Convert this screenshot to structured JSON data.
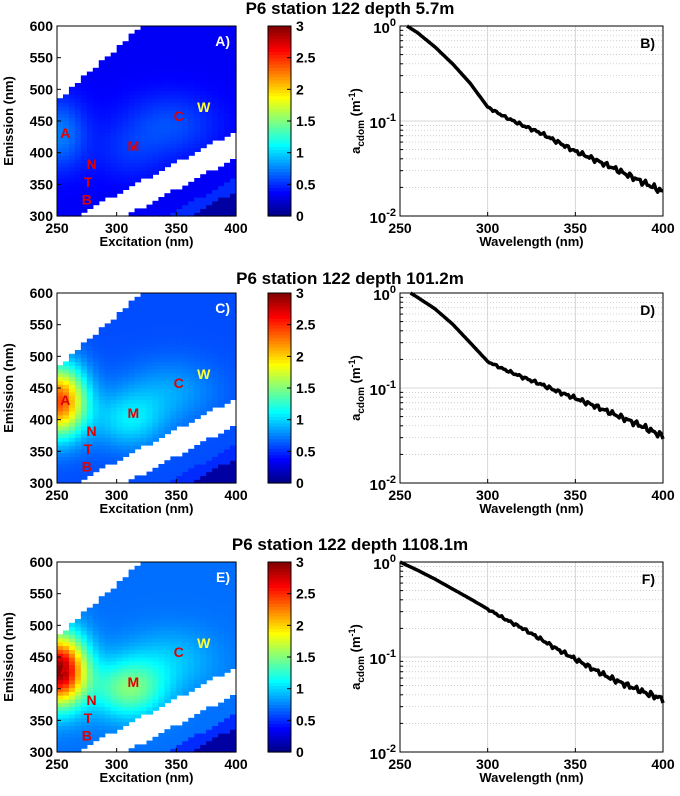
{
  "chart_data": [
    {
      "row": 0,
      "title": "P6 station 122 depth 5.7m",
      "eem": {
        "type": "heatmap",
        "panel": "A)",
        "xlabel": "Excitation (nm)",
        "ylabel": "Emission (nm)",
        "xlim": [
          250,
          400
        ],
        "ylim": [
          300,
          600
        ],
        "xticks": [
          "250",
          "300",
          "350",
          "400"
        ],
        "yticks": [
          "300",
          "350",
          "400",
          "450",
          "500",
          "550",
          "600"
        ],
        "peak_A": 0.75,
        "peak_M": 0.6,
        "background": 0.35,
        "peaks": [
          {
            "label": "A",
            "ex": 257,
            "em": 423,
            "color": "#e00000"
          },
          {
            "label": "N",
            "ex": 279,
            "em": 374,
            "color": "#e00000"
          },
          {
            "label": "T",
            "ex": 276,
            "em": 346,
            "color": "#e00000"
          },
          {
            "label": "B",
            "ex": 275,
            "em": 318,
            "color": "#e00000"
          },
          {
            "label": "M",
            "ex": 314,
            "em": 403,
            "color": "#e00000"
          },
          {
            "label": "C",
            "ex": 352,
            "em": 450,
            "color": "#e00000"
          },
          {
            "label": "W",
            "ex": 373,
            "em": 464,
            "color": "#ffff33"
          }
        ],
        "colorbar": {
          "min": 0,
          "max": 3,
          "ticks": [
            "0",
            "0.5",
            "1",
            "1.5",
            "2",
            "2.5",
            "3"
          ]
        }
      },
      "abs": {
        "type": "line",
        "panel": "B)",
        "xlabel": "Wavelength (nm)",
        "ylabel": "a",
        "ylabel_sub": "cdom",
        "ylabel_unit": " (m",
        "ylabel_exp": "-1",
        "ylabel_close": ")",
        "xlim": [
          250,
          400
        ],
        "ylim": [
          0.01,
          1
        ],
        "xticks": [
          "250",
          "300",
          "350",
          "400"
        ],
        "yticks": [
          {
            "base": "10",
            "exp": "0"
          },
          {
            "base": "10",
            "exp": "-1"
          },
          {
            "base": "10",
            "exp": "-2"
          }
        ],
        "x": [
          254,
          260,
          270,
          280,
          290,
          300,
          310,
          320,
          330,
          340,
          350,
          360,
          370,
          380,
          390,
          400
        ],
        "y": [
          1.0,
          0.85,
          0.6,
          0.4,
          0.25,
          0.14,
          0.11,
          0.09,
          0.075,
          0.06,
          0.048,
          0.04,
          0.033,
          0.027,
          0.022,
          0.018
        ]
      }
    },
    {
      "row": 1,
      "title": "P6 station 122 depth 101.2m",
      "eem": {
        "type": "heatmap",
        "panel": "C)",
        "xlabel": "Excitation (nm)",
        "ylabel": "Emission (nm)",
        "xlim": [
          250,
          400
        ],
        "ylim": [
          300,
          600
        ],
        "xticks": [
          "250",
          "300",
          "350",
          "400"
        ],
        "yticks": [
          "300",
          "350",
          "400",
          "450",
          "500",
          "550",
          "600"
        ],
        "peak_A": 2.4,
        "peak_M": 1.4,
        "background": 0.6,
        "peaks": [
          {
            "label": "A",
            "ex": 257,
            "em": 423,
            "color": "#e00000"
          },
          {
            "label": "N",
            "ex": 279,
            "em": 374,
            "color": "#e00000"
          },
          {
            "label": "T",
            "ex": 276,
            "em": 346,
            "color": "#e00000"
          },
          {
            "label": "B",
            "ex": 275,
            "em": 318,
            "color": "#e00000"
          },
          {
            "label": "M",
            "ex": 314,
            "em": 403,
            "color": "#e00000"
          },
          {
            "label": "C",
            "ex": 352,
            "em": 450,
            "color": "#e00000"
          },
          {
            "label": "W",
            "ex": 373,
            "em": 464,
            "color": "#ffff33"
          }
        ],
        "colorbar": {
          "min": 0,
          "max": 3,
          "ticks": [
            "0",
            "0.5",
            "1",
            "1.5",
            "2",
            "2.5",
            "3"
          ]
        }
      },
      "abs": {
        "type": "line",
        "panel": "D)",
        "xlabel": "Wavelength (nm)",
        "ylabel": "a",
        "ylabel_sub": "cdom",
        "ylabel_unit": " (m",
        "ylabel_exp": "-1",
        "ylabel_close": ")",
        "xlim": [
          250,
          400
        ],
        "ylim": [
          0.01,
          1
        ],
        "xticks": [
          "250",
          "300",
          "350",
          "400"
        ],
        "yticks": [
          {
            "base": "10",
            "exp": "0"
          },
          {
            "base": "10",
            "exp": "-1"
          },
          {
            "base": "10",
            "exp": "-2"
          }
        ],
        "x": [
          256,
          260,
          270,
          280,
          290,
          300,
          310,
          320,
          330,
          340,
          350,
          360,
          370,
          380,
          390,
          400
        ],
        "y": [
          1.0,
          0.9,
          0.68,
          0.47,
          0.3,
          0.19,
          0.155,
          0.13,
          0.11,
          0.092,
          0.078,
          0.066,
          0.055,
          0.046,
          0.038,
          0.031
        ]
      }
    },
    {
      "row": 2,
      "title": "P6 station 122 depth 1108.1m",
      "eem": {
        "type": "heatmap",
        "panel": "E)",
        "xlabel": "Excitation (nm)",
        "ylabel": "Emission (nm)",
        "xlim": [
          250,
          400
        ],
        "ylim": [
          300,
          600
        ],
        "xticks": [
          "250",
          "300",
          "350",
          "400"
        ],
        "yticks": [
          "300",
          "350",
          "400",
          "450",
          "500",
          "550",
          "600"
        ],
        "peak_A": 2.95,
        "peak_M": 2.1,
        "background": 0.7,
        "peaks": [
          {
            "label": "A",
            "ex": 257,
            "em": 423,
            "color": "#e00000"
          },
          {
            "label": "N",
            "ex": 279,
            "em": 374,
            "color": "#e00000"
          },
          {
            "label": "T",
            "ex": 276,
            "em": 346,
            "color": "#e00000"
          },
          {
            "label": "B",
            "ex": 275,
            "em": 318,
            "color": "#e00000"
          },
          {
            "label": "M",
            "ex": 314,
            "em": 403,
            "color": "#e00000"
          },
          {
            "label": "C",
            "ex": 352,
            "em": 450,
            "color": "#e00000"
          },
          {
            "label": "W",
            "ex": 373,
            "em": 464,
            "color": "#ffff33"
          }
        ],
        "colorbar": {
          "min": 0,
          "max": 3,
          "ticks": [
            "0",
            "0.5",
            "1",
            "1.5",
            "2",
            "2.5",
            "3"
          ]
        }
      },
      "abs": {
        "type": "line",
        "panel": "F)",
        "xlabel": "Wavelength (nm)",
        "ylabel": "a",
        "ylabel_sub": "cdom",
        "ylabel_unit": " (m",
        "ylabel_exp": "-1",
        "ylabel_close": ")",
        "xlim": [
          250,
          400
        ],
        "ylim": [
          0.01,
          1
        ],
        "xticks": [
          "250",
          "300",
          "350",
          "400"
        ],
        "yticks": [
          {
            "base": "10",
            "exp": "0"
          },
          {
            "base": "10",
            "exp": "-1"
          },
          {
            "base": "10",
            "exp": "-2"
          }
        ],
        "x": [
          250,
          260,
          270,
          280,
          290,
          300,
          310,
          320,
          330,
          340,
          350,
          360,
          370,
          380,
          390,
          400
        ],
        "y": [
          1.0,
          0.82,
          0.66,
          0.52,
          0.41,
          0.32,
          0.25,
          0.2,
          0.155,
          0.12,
          0.095,
          0.075,
          0.06,
          0.05,
          0.042,
          0.036
        ]
      }
    }
  ]
}
